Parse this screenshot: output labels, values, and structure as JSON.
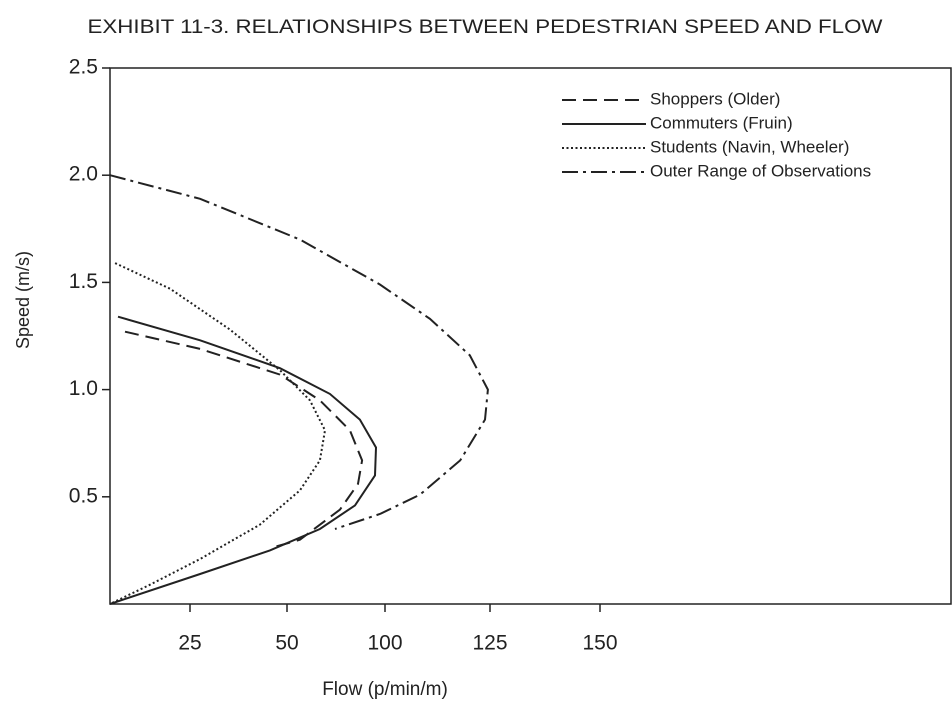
{
  "chart_data": {
    "type": "line",
    "title": "EXHIBIT 11-3.  RELATIONSHIPS BETWEEN PEDESTRIAN SPEED AND FLOW",
    "xlabel": "Flow (p/min/m)",
    "ylabel": "Speed (m/s)",
    "xlim": [
      0,
      230
    ],
    "xticks": [
      25,
      50,
      100,
      125,
      150
    ],
    "ylim": [
      0,
      2.5
    ],
    "yticks": [
      {
        "value": 0.5,
        "label": "0.5"
      },
      {
        "value": 1.0,
        "label": "1.0"
      },
      {
        "value": 1.5,
        "label": "1.5"
      },
      {
        "value": 2.0,
        "label": "2.0"
      },
      {
        "value": 2.5,
        "label": "2.5"
      }
    ],
    "legend": "upper right",
    "series": [
      {
        "name": "Shoppers (Older)",
        "color": "#222222",
        "dash": "dashed",
        "x": [
          4.7,
          27.6,
          48.2,
          66.8,
          82.1,
          88.3,
          86.2,
          77,
          56.6,
          45.6
        ],
        "values": [
          1.27,
          1.19,
          1.07,
          0.95,
          0.81,
          0.67,
          0.56,
          0.44,
          0.3,
          0.26
        ]
      },
      {
        "name": "Commuters (Fruin)",
        "color": "#222222",
        "dash": "solid",
        "x": [
          2.5,
          27.6,
          48.2,
          71.9,
          87.2,
          95.4,
          94.9,
          84.7,
          66.8,
          45.6,
          27.6,
          0
        ],
        "values": [
          1.34,
          1.23,
          1.1,
          0.98,
          0.86,
          0.73,
          0.6,
          0.46,
          0.35,
          0.25,
          0.14,
          0
        ]
      },
      {
        "name": "Students (Navin, Wheeler)",
        "color": "#222222",
        "dash": "dotted",
        "x": [
          1.6,
          18.8,
          35.3,
          48.2,
          61.7,
          69.4,
          66.8,
          56.6,
          43,
          27.6,
          12.5,
          0
        ],
        "values": [
          1.59,
          1.47,
          1.28,
          1.09,
          0.95,
          0.81,
          0.67,
          0.53,
          0.37,
          0.21,
          0.09,
          0
        ]
      },
      {
        "name": "Outer Range of Observations",
        "color": "#222222",
        "dash": "dashdot",
        "x": [
          0,
          27.6,
          56.6,
          97.4,
          110.7,
          120.2,
          124.5,
          123.8,
          117.9,
          108.3,
          97.4,
          74.5
        ],
        "values": [
          2.0,
          1.89,
          1.7,
          1.49,
          1.33,
          1.16,
          1.0,
          0.86,
          0.67,
          0.51,
          0.42,
          0.35
        ]
      }
    ]
  }
}
